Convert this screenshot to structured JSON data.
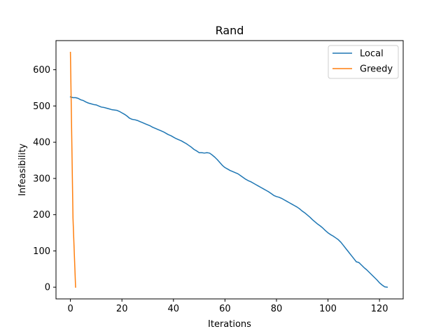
{
  "chart_data": {
    "type": "line",
    "title": "Rand",
    "xlabel": "Iterations",
    "ylabel": "Infeasibility",
    "xlim": [
      -5.6,
      129.2
    ],
    "ylim": [
      -32.4,
      680.4
    ],
    "xticks": [
      0,
      20,
      40,
      60,
      80,
      100,
      120
    ],
    "yticks": [
      0,
      100,
      200,
      300,
      400,
      500,
      600
    ],
    "grid": false,
    "legend_position": "upper right",
    "series": [
      {
        "name": "Local",
        "color": "#1f77b4",
        "x": [
          0,
          1,
          2,
          3,
          4,
          5,
          6,
          7,
          8,
          9,
          10,
          11,
          12,
          13,
          14,
          15,
          16,
          17,
          18,
          19,
          20,
          21,
          22,
          23,
          24,
          25,
          26,
          27,
          28,
          29,
          30,
          31,
          32,
          33,
          34,
          35,
          36,
          37,
          38,
          39,
          40,
          41,
          42,
          43,
          44,
          45,
          46,
          47,
          48,
          49,
          50,
          51,
          52,
          53,
          54,
          55,
          56,
          57,
          58,
          59,
          60,
          61,
          62,
          63,
          64,
          65,
          66,
          67,
          68,
          69,
          70,
          71,
          72,
          73,
          74,
          75,
          76,
          77,
          78,
          79,
          80,
          81,
          82,
          83,
          84,
          85,
          86,
          87,
          88,
          89,
          90,
          91,
          92,
          93,
          94,
          95,
          96,
          97,
          98,
          99,
          100,
          101,
          102,
          103,
          104,
          105,
          106,
          107,
          108,
          109,
          110,
          111,
          112,
          113,
          114,
          115,
          116,
          117,
          118,
          119,
          120,
          121,
          122,
          123
        ],
        "y": [
          525,
          523,
          523,
          521,
          517,
          515,
          511,
          508,
          506,
          504,
          503,
          500,
          497,
          496,
          494,
          492,
          490,
          489,
          488,
          485,
          481,
          477,
          472,
          466,
          463,
          462,
          460,
          457,
          454,
          451,
          448,
          445,
          441,
          438,
          435,
          432,
          429,
          425,
          421,
          418,
          414,
          410,
          407,
          404,
          400,
          396,
          391,
          386,
          380,
          376,
          371,
          371,
          370,
          371,
          370,
          365,
          359,
          352,
          344,
          336,
          330,
          326,
          322,
          319,
          316,
          313,
          308,
          303,
          298,
          294,
          291,
          287,
          283,
          279,
          275,
          271,
          267,
          263,
          258,
          253,
          250,
          248,
          245,
          241,
          237,
          233,
          229,
          225,
          221,
          216,
          210,
          205,
          199,
          193,
          186,
          180,
          174,
          169,
          163,
          156,
          150,
          145,
          141,
          136,
          131,
          124,
          115,
          106,
          97,
          88,
          79,
          70,
          68,
          61,
          54,
          48,
          41,
          34,
          27,
          20,
          12,
          6,
          1,
          0
        ]
      },
      {
        "name": "Greedy",
        "color": "#ff7f0e",
        "x": [
          0,
          1,
          2
        ],
        "y": [
          648,
          190,
          0
        ]
      }
    ]
  }
}
